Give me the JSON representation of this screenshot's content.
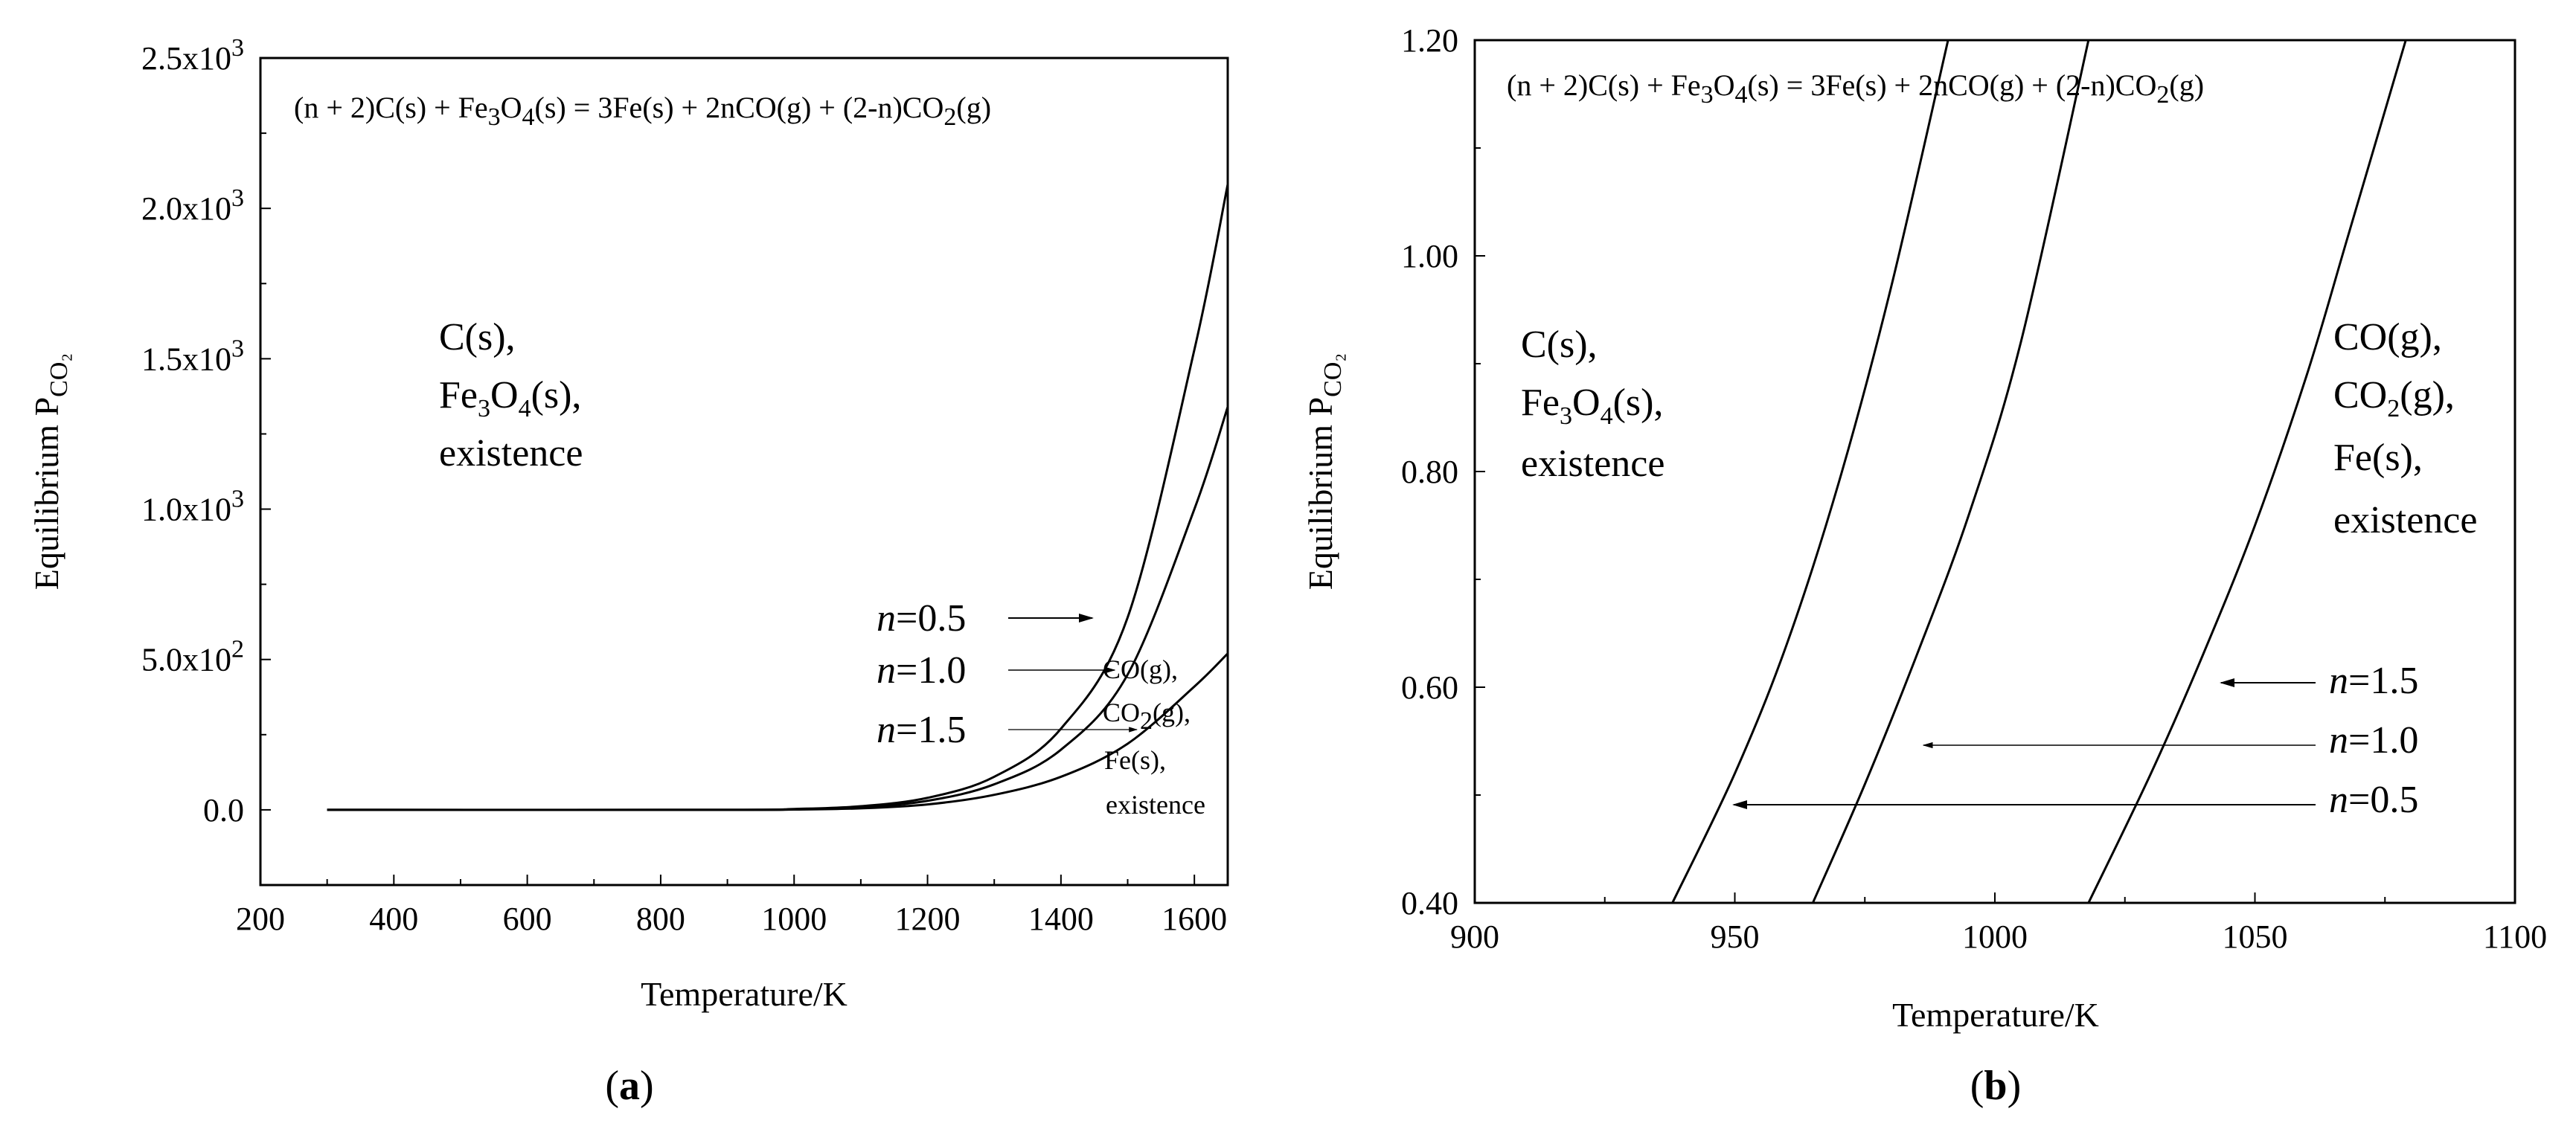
{
  "figure": {
    "panel_a_caption": "a",
    "panel_b_caption": "b"
  },
  "chart_data": [
    {
      "type": "line",
      "panel": "a",
      "xlabel": "Temperature/K",
      "ylabel": "Equilibrium P",
      "ylabel_subscript": "CO₂",
      "xlim": [
        200,
        1650
      ],
      "ylim": [
        -250,
        2500
      ],
      "xticks": [
        "200",
        "400",
        "600",
        "800",
        "1000",
        "1200",
        "1400",
        "1600"
      ],
      "xtick_values": [
        200,
        400,
        600,
        800,
        1000,
        1200,
        1400,
        1600
      ],
      "yticks": [
        "0.0",
        "5.0x10",
        "1.0x10",
        "1.5x10",
        "2.0x10",
        "2.5x10"
      ],
      "ytick_exponents": [
        "",
        "2",
        "3",
        "3",
        "3",
        "3"
      ],
      "ytick_values": [
        0,
        500,
        1000,
        1500,
        2000,
        2500
      ],
      "equation": {
        "p1": "(n + 2)C(s) + Fe",
        "s1": "3",
        "p2": "O",
        "s2": "4",
        "p3": "(s) = 3Fe(s) + 2nCO(g) + (2-n)CO",
        "s3": "2",
        "p4": "(g)"
      },
      "region_left": {
        "l1": "C(s),",
        "l2a": "Fe",
        "l2s1": "3",
        "l2b": "O",
        "l2s2": "4",
        "l2c": "(s),",
        "l3": "existence"
      },
      "region_right": {
        "l1": "CO(g),",
        "l2a": "CO",
        "l2s": "2",
        "l2b": "(g),",
        "l3": "Fe(s),",
        "l4": "existence"
      },
      "series": [
        {
          "name": "n=0.5",
          "x": [
            300,
            900,
            1000,
            1100,
            1200,
            1300,
            1400,
            1500,
            1600,
            1650
          ],
          "values": [
            0,
            0,
            3,
            12,
            40,
            110,
            270,
            640,
            1530,
            2080
          ]
        },
        {
          "name": "n=1.0",
          "x": [
            300,
            900,
            1000,
            1100,
            1200,
            1300,
            1400,
            1500,
            1600,
            1650
          ],
          "values": [
            0,
            0,
            2,
            9,
            30,
            85,
            200,
            450,
            1000,
            1340
          ]
        },
        {
          "name": "n=1.5",
          "x": [
            300,
            900,
            1000,
            1100,
            1200,
            1300,
            1400,
            1500,
            1600,
            1650
          ],
          "values": [
            0,
            0,
            1,
            5,
            18,
            50,
            110,
            220,
            410,
            520
          ]
        }
      ],
      "labels": [
        {
          "var": "n",
          "text": "=0.5"
        },
        {
          "var": "n",
          "text": "=1.0"
        },
        {
          "var": "n",
          "text": "=1.5"
        }
      ]
    },
    {
      "type": "line",
      "panel": "b",
      "xlabel": "Temperature/K",
      "ylabel": "Equilibrium P",
      "ylabel_subscript": "CO₂",
      "xlim": [
        900,
        1100
      ],
      "ylim": [
        0.4,
        1.2
      ],
      "xticks": [
        "900",
        "950",
        "1000",
        "1050",
        "1100"
      ],
      "xtick_values": [
        900,
        950,
        1000,
        1050,
        1100
      ],
      "yticks": [
        "0.40",
        "0.60",
        "0.80",
        "1.00",
        "1.20"
      ],
      "ytick_values": [
        0.4,
        0.6,
        0.8,
        1.0,
        1.2
      ],
      "equation": {
        "p1": "(n + 2)C(s) + Fe",
        "s1": "3",
        "p2": "O",
        "s2": "4",
        "p3": "(s) = 3Fe(s) + 2nCO(g) + (2-n)CO",
        "s3": "2",
        "p4": "(g)"
      },
      "region_left": {
        "l1": "C(s),",
        "l2a": "Fe",
        "l2s1": "3",
        "l2b": "O",
        "l2s2": "4",
        "l2c": "(s),",
        "l3": "existence"
      },
      "region_right": {
        "l1": "CO(g),",
        "l2a": "CO",
        "l2s": "2",
        "l2b": "(g),",
        "l3": "Fe(s),",
        "l4": "existence"
      },
      "series": [
        {
          "name": "n=0.5",
          "x": [
            938,
            950,
            960,
            970,
            980,
            991
          ],
          "values": [
            0.4,
            0.52,
            0.64,
            0.79,
            0.97,
            1.2
          ]
        },
        {
          "name": "n=1.0",
          "x": [
            965,
            975,
            985,
            995,
            1005,
            1018
          ],
          "values": [
            0.4,
            0.51,
            0.63,
            0.76,
            0.92,
            1.2
          ]
        },
        {
          "name": "n=1.5",
          "x": [
            1018,
            1030,
            1040,
            1050,
            1060,
            1068,
            1079
          ],
          "values": [
            0.4,
            0.52,
            0.63,
            0.75,
            0.89,
            1.02,
            1.2
          ]
        }
      ],
      "labels": [
        {
          "var": "n",
          "text": "=1.5"
        },
        {
          "var": "n",
          "text": "=1.0"
        },
        {
          "var": "n",
          "text": "=0.5"
        }
      ]
    }
  ]
}
